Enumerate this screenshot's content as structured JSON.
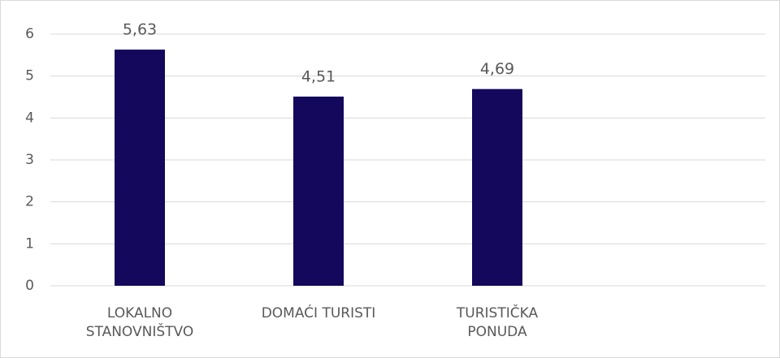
{
  "chart_data": {
    "type": "bar",
    "categories": [
      "LOKALNO\nSTANOVNIŠTVO",
      "DOMAĆI TURISTI",
      "TURISTIČKA\nPONUDA",
      null
    ],
    "values": [
      5.63,
      4.51,
      4.69,
      null
    ],
    "value_labels": [
      "5,63",
      "4,51",
      "4,69",
      null
    ],
    "color": "#13085c",
    "ylim": [
      0,
      6
    ],
    "yticks": [
      0,
      1,
      2,
      3,
      4,
      5,
      6
    ],
    "grid": true
  }
}
